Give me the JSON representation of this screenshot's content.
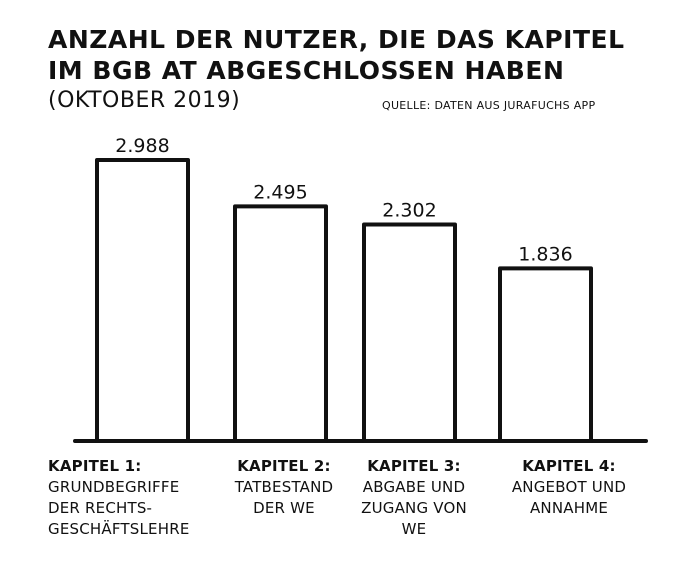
{
  "title": "ANZAHL DER NUTZER, DIE DAS KAPITEL IM BGB AT ABGESCHLOSSEN HABEN",
  "subtitle": "(OKTOBER 2019)",
  "source": "QUELLE: DATEN AUS JURAFUCHS APP",
  "chart_data": {
    "type": "bar",
    "title": "ANZAHL DER NUTZER, DIE DAS KAPITEL IM BGB AT ABGESCHLOSSEN HABEN",
    "subtitle": "(OKTOBER 2019)",
    "categories": [
      {
        "head": "KAPITEL 1:",
        "body": "GRUNDBEGRIFFE\nDER RECHTS-\nGESCHÄFTSLEHRE"
      },
      {
        "head": "KAPITEL 2:",
        "body": "TATBESTAND\nDER WE"
      },
      {
        "head": "KAPITEL 3:",
        "body": "ABGABE UND\nZUGANG VON\nWE"
      },
      {
        "head": "KAPITEL 4:",
        "body": "ANGEBOT UND\nANNAHME"
      }
    ],
    "values": [
      2988,
      2495,
      2302,
      1836
    ],
    "value_labels": [
      "2.988",
      "2.495",
      "2.302",
      "1.836"
    ],
    "ylim": [
      0,
      3000
    ],
    "grid": false,
    "legend": "none"
  }
}
